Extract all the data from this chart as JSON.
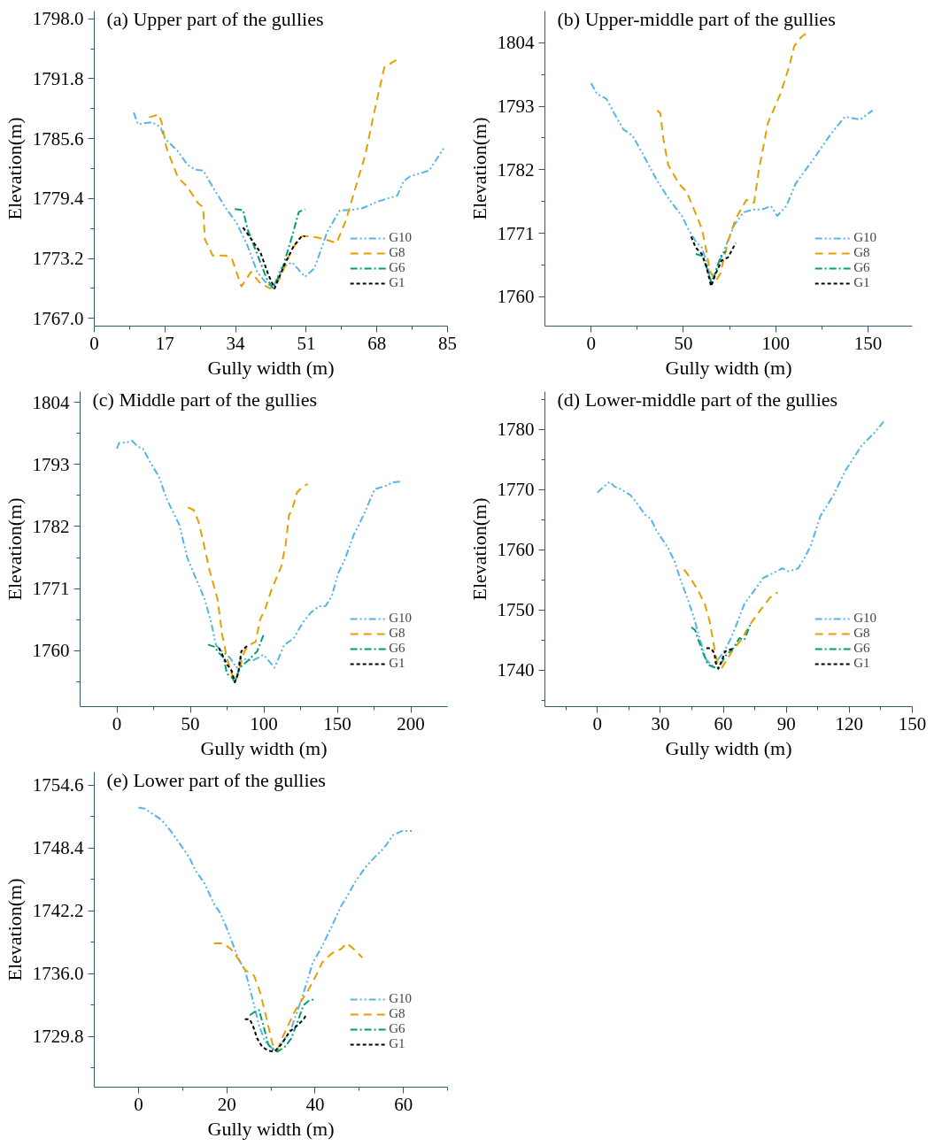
{
  "chart_data": [
    {
      "type": "line",
      "title": "(a) Upper part of the gullies",
      "xlabel": "Gully width (m)",
      "ylabel": "Elevation(m)",
      "legend": "bottom right",
      "xlim": [
        0,
        85
      ],
      "ylim": [
        1766.2,
        1798.8
      ],
      "xticks": [
        0,
        17,
        34,
        51,
        68,
        85,
        {
          "value": 8.5,
          "label": null
        },
        {
          "value": 25.5,
          "label": null
        },
        {
          "value": 42.5,
          "label": null
        },
        {
          "value": 59.5,
          "label": null
        },
        {
          "value": 76.5,
          "label": null
        }
      ],
      "yticks": [
        {
          "value": 1767,
          "label": "1767.0"
        },
        1773.2,
        1779.4,
        1785.6,
        1791.8,
        {
          "value": 1798,
          "label": "1798.0"
        },
        {
          "value": 1770.1,
          "label": null
        },
        {
          "value": 1776.3,
          "label": null
        },
        {
          "value": 1782.5,
          "label": null
        },
        {
          "value": 1788.7,
          "label": null
        },
        {
          "value": 1794.9,
          "label": null
        }
      ],
      "series": [
        {
          "name": "G10",
          "color": "#56b4e9",
          "line_style": "dashdotdot",
          "x": [
            9.5,
            10.5,
            13.9,
            15.9,
            17.0,
            20.1,
            22.4,
            24.3,
            26.2,
            28.5,
            31.5,
            34.2,
            36.9,
            39.2,
            41.1,
            43.0,
            44.9,
            47.6,
            50.7,
            53.0,
            56.0,
            59.1,
            61.4,
            64.5,
            68.3,
            72.9,
            74.4,
            76.0,
            80.6,
            84.4
          ],
          "values": [
            1788.3,
            1787.1,
            1787.3,
            1786.8,
            1785.6,
            1784.3,
            1782.9,
            1782.4,
            1782.3,
            1780.6,
            1778.5,
            1776.9,
            1774.5,
            1771.8,
            1770.8,
            1770.1,
            1772.2,
            1772.8,
            1771.3,
            1772.2,
            1775.9,
            1778.2,
            1778.2,
            1778.4,
            1779.1,
            1779.7,
            1781.2,
            1781.7,
            1782.3,
            1784.8
          ]
        },
        {
          "name": "G8",
          "color": "#e69f00",
          "line_style": "dashed",
          "x": [
            13.2,
            15.5,
            16.2,
            17.4,
            20.1,
            22.4,
            25.0,
            26.2,
            26.6,
            28.5,
            31.5,
            33.1,
            35.4,
            37.7,
            40.0,
            42.3,
            44.6,
            47.6,
            49.9,
            52.2,
            55.3,
            58.3,
            60.6,
            62.9,
            65.2,
            67.5,
            69.8,
            71.4,
            73.3
          ],
          "values": [
            1787.8,
            1788.1,
            1787.3,
            1784.6,
            1781.6,
            1780.6,
            1778.9,
            1778.5,
            1775.2,
            1773.5,
            1773.5,
            1773.2,
            1770.3,
            1771.8,
            1770.6,
            1770.1,
            1771.1,
            1774.2,
            1775.5,
            1775.5,
            1775.2,
            1774.8,
            1777.2,
            1780.6,
            1783.9,
            1788.6,
            1793.0,
            1793.4,
            1793.9
          ]
        },
        {
          "name": "G6",
          "color": "#009e73",
          "line_style": "dashdot",
          "x": [
            33.8,
            35.8,
            36.9,
            39.6,
            41.5,
            43.0,
            45.3,
            47.6,
            49.2,
            50.7
          ],
          "values": [
            1778.3,
            1778.2,
            1776.2,
            1773.2,
            1771.1,
            1770.1,
            1772.2,
            1775.5,
            1778.0,
            1778.3
          ]
        },
        {
          "name": "G1",
          "color": "#000000",
          "line_style": "dotted",
          "x": [
            35.8,
            37.3,
            40.0,
            41.9,
            43.4,
            45.7,
            48.0,
            49.9,
            50.7
          ],
          "values": [
            1776.4,
            1775.5,
            1773.8,
            1771.5,
            1770.1,
            1772.5,
            1774.5,
            1775.5,
            1775.5
          ]
        }
      ]
    },
    {
      "type": "line",
      "title": "(b) Upper-middle part of the gullies",
      "xlabel": "Gully width (m)",
      "ylabel": "Elevation(m)",
      "legend": "bottom right",
      "xlim": [
        -25,
        174
      ],
      "ylim": [
        1754.9,
        1809.5
      ],
      "xticks": [
        0,
        50,
        100,
        150,
        {
          "value": 25,
          "label": null
        },
        {
          "value": 75,
          "label": null
        },
        {
          "value": 125,
          "label": null
        }
      ],
      "yticks": [
        1760,
        1771,
        1782,
        1793,
        1804,
        {
          "value": 1765.5,
          "label": null
        },
        {
          "value": 1776.5,
          "label": null
        },
        {
          "value": 1787.5,
          "label": null
        },
        {
          "value": 1798.5,
          "label": null
        }
      ],
      "series": [
        {
          "name": "G10",
          "color": "#56b4e9",
          "line_style": "dashdotdot",
          "x": [
            0,
            3.3,
            8.3,
            12.5,
            17.5,
            22.5,
            29.2,
            35.8,
            42.5,
            49.2,
            52.5,
            56.7,
            60.0,
            63.3,
            65.0,
            69.2,
            73.3,
            77.5,
            82.5,
            87.5,
            92.5,
            97.5,
            100.8,
            105.8,
            110.8,
            115.8,
            120.8,
            129.2,
            137.5,
            145.8,
            152.5
          ],
          "values": [
            1797.0,
            1795.1,
            1794.3,
            1791.8,
            1789.0,
            1787.9,
            1784.0,
            1780.1,
            1776.8,
            1774.0,
            1771.8,
            1769.6,
            1768.5,
            1765.2,
            1762.4,
            1765.7,
            1769.0,
            1772.4,
            1774.6,
            1775.1,
            1775.1,
            1775.7,
            1774.0,
            1775.7,
            1779.6,
            1781.8,
            1784.0,
            1787.9,
            1791.2,
            1790.7,
            1792.3
          ]
        },
        {
          "name": "G8",
          "color": "#e69f00",
          "line_style": "dashed",
          "x": [
            35.8,
            37.5,
            39.2,
            41.7,
            47.5,
            51.7,
            55.8,
            60.0,
            62.5,
            64.2,
            67.5,
            70.0,
            74.2,
            78.3,
            84.2,
            86.7,
            88.3,
            90.8,
            95.8,
            102.5,
            107.5,
            110.0,
            114.2,
            117.5
          ],
          "values": [
            1792.3,
            1791.8,
            1787.3,
            1782.9,
            1779.6,
            1778.2,
            1775.1,
            1771.8,
            1767.9,
            1764.6,
            1762.7,
            1764.0,
            1769.6,
            1773.5,
            1776.8,
            1776.3,
            1776.3,
            1781.8,
            1790.1,
            1795.1,
            1800.1,
            1803.4,
            1805.1,
            1805.9
          ]
        },
        {
          "name": "G6",
          "color": "#009e73",
          "line_style": "dashdot",
          "x": [
            56.7,
            60.0,
            62.5,
            65.5,
            68.3,
            70.8,
            73.3
          ],
          "values": [
            1767.4,
            1767.1,
            1765.2,
            1762.1,
            1765.2,
            1767.4,
            1767.9
          ]
        },
        {
          "name": "G1",
          "color": "#000000",
          "line_style": "dotted",
          "x": [
            54.2,
            56.7,
            60.0,
            62.5,
            65.0,
            67.5,
            70.8,
            74.2,
            78.3
          ],
          "values": [
            1770.4,
            1768.5,
            1767.4,
            1765.2,
            1761.8,
            1764.0,
            1766.3,
            1766.8,
            1769.3
          ]
        }
      ]
    },
    {
      "type": "line",
      "title": "(c) Middle part of the gullies",
      "xlabel": "Gully width (m)",
      "ylabel": "Elevation(m)",
      "legend": "bottom right",
      "xlim": [
        -25,
        225
      ],
      "ylim": [
        1750.1,
        1805.9
      ],
      "xticks": [
        0,
        50,
        100,
        150,
        200,
        {
          "value": 25,
          "label": null
        },
        {
          "value": 75,
          "label": null
        },
        {
          "value": 125,
          "label": null
        },
        {
          "value": 175,
          "label": null
        }
      ],
      "yticks": [
        1760,
        1771,
        1782,
        1793,
        1804,
        {
          "value": 1754.5,
          "label": null
        },
        {
          "value": 1765.5,
          "label": null
        },
        {
          "value": 1776.5,
          "label": null
        },
        {
          "value": 1787.5,
          "label": null
        },
        {
          "value": 1798.5,
          "label": null
        }
      ],
      "series": [
        {
          "name": "G10",
          "color": "#56b4e9",
          "line_style": "dashdotdot",
          "x": [
            0,
            1.5,
            6.9,
            10.2,
            14.5,
            17.7,
            23.1,
            28.5,
            33.9,
            40.4,
            42.5,
            47.9,
            53.3,
            59.8,
            64.1,
            67.4,
            71.7,
            77.1,
            81.4,
            84.7,
            92.2,
            99.8,
            107.3,
            113.8,
            120.3,
            126.8,
            132.2,
            137.6,
            141.9,
            146.2,
            150.5,
            154.9,
            161.3,
            167.8,
            175.4,
            182.9,
            187.3,
            193.7
          ],
          "values": [
            1795.8,
            1796.8,
            1796.9,
            1797.2,
            1796.1,
            1795.8,
            1793.2,
            1790.9,
            1786.9,
            1783.4,
            1782.3,
            1776.5,
            1773.1,
            1769.1,
            1765.1,
            1761.0,
            1759.9,
            1758.7,
            1757.0,
            1758.7,
            1758.2,
            1759.3,
            1757.0,
            1761.0,
            1762.2,
            1765.1,
            1766.8,
            1767.9,
            1767.9,
            1769.6,
            1773.7,
            1776.0,
            1780.6,
            1784.0,
            1788.6,
            1789.2,
            1789.8,
            1790.0
          ]
        },
        {
          "name": "G8",
          "color": "#e69f00",
          "line_style": "dashed",
          "x": [
            48.4,
            52.3,
            55.5,
            58.7,
            63.1,
            68.5,
            71.7,
            74.9,
            78.2,
            80.3,
            83.6,
            86.8,
            90.1,
            94.4,
            97.6,
            100.9,
            105.2,
            111.7,
            114.9,
            117.1,
            119.2,
            122.5,
            126.8,
            130.0
          ],
          "values": [
            1785.4,
            1784.9,
            1782.9,
            1779.4,
            1774.2,
            1769.1,
            1762.8,
            1758.7,
            1755.9,
            1754.4,
            1757.0,
            1759.9,
            1761.0,
            1761.6,
            1765.6,
            1767.4,
            1770.8,
            1774.8,
            1778.8,
            1784.0,
            1784.9,
            1788.0,
            1789.2,
            1789.5
          ]
        },
        {
          "name": "G6",
          "color": "#009e73",
          "line_style": "dashdot",
          "x": [
            62.0,
            66.3,
            69.5,
            72.8,
            74.9,
            78.2,
            80.3,
            83.6,
            89.0,
            95.5,
            99.8,
            100.4
          ],
          "values": [
            1761.1,
            1760.7,
            1759.6,
            1758.7,
            1755.9,
            1755.3,
            1754.4,
            1757.0,
            1758.2,
            1759.9,
            1762.8,
            1763.2
          ]
        },
        {
          "name": "G1",
          "color": "#000000",
          "line_style": "dotted",
          "x": [
            69.5,
            71.7,
            74.9,
            78.2,
            80.3,
            82.5,
            84.7,
            87.9,
            89.6
          ],
          "values": [
            1760.5,
            1759.3,
            1757.6,
            1756.4,
            1754.4,
            1755.9,
            1759.9,
            1760.7,
            1760.9
          ]
        }
      ]
    },
    {
      "type": "line",
      "title": "(d) Lower-middle part of the gullies",
      "xlabel": "Gully width (m)",
      "ylabel": "Elevation(m)",
      "legend": "bottom right",
      "xlim": [
        -25,
        150
      ],
      "ylim": [
        1733.9,
        1786.3
      ],
      "xticks": [
        0,
        30,
        60,
        90,
        120,
        150,
        {
          "value": -15,
          "label": null
        },
        {
          "value": 15,
          "label": null
        },
        {
          "value": 45,
          "label": null
        },
        {
          "value": 75,
          "label": null
        },
        {
          "value": 105,
          "label": null
        },
        {
          "value": 135,
          "label": null
        }
      ],
      "yticks": [
        1740,
        1750,
        1760,
        1770,
        1780,
        {
          "value": 1735,
          "label": null
        },
        {
          "value": 1745,
          "label": null
        },
        {
          "value": 1755,
          "label": null
        },
        {
          "value": 1765,
          "label": null
        },
        {
          "value": 1775,
          "label": null
        },
        {
          "value": 1785,
          "label": null
        }
      ],
      "series": [
        {
          "name": "G10",
          "color": "#56b4e9",
          "line_style": "dashdotdot",
          "x": [
            0,
            2.1,
            5.9,
            8.1,
            10.4,
            15.7,
            18.7,
            22.5,
            25.5,
            27.8,
            30.8,
            33.8,
            36.8,
            39.8,
            42.8,
            45.9,
            48.9,
            51.9,
            54.9,
            58.7,
            60.9,
            63.9,
            67.0,
            70.0,
            74.5,
            79.0,
            83.6,
            88.1,
            91.1,
            95.6,
            98.6,
            101.7,
            106.2,
            112.2,
            118.2,
            125.8,
            131.8,
            136.3
          ],
          "values": [
            1769.5,
            1770.2,
            1771.3,
            1770.5,
            1770.2,
            1769.1,
            1767.8,
            1765.9,
            1765.1,
            1763.4,
            1761.8,
            1760.2,
            1758.0,
            1754.8,
            1752.0,
            1748.8,
            1745.0,
            1741.7,
            1740.7,
            1742.3,
            1743.4,
            1745.5,
            1748.2,
            1751.0,
            1753.1,
            1755.3,
            1756.1,
            1756.9,
            1756.4,
            1756.9,
            1758.6,
            1760.7,
            1765.6,
            1768.9,
            1773.2,
            1777.3,
            1779.4,
            1781.3
          ]
        },
        {
          "name": "G8",
          "color": "#e69f00",
          "line_style": "dashed",
          "x": [
            41.3,
            44.3,
            48.1,
            51.1,
            53.4,
            54.9,
            56.1,
            57.2,
            59.4,
            61.7,
            64.7,
            68.5,
            73.0,
            77.5,
            82.1,
            85.8
          ],
          "values": [
            1756.7,
            1755.3,
            1753.1,
            1751.0,
            1748.2,
            1745.3,
            1742.8,
            1741.2,
            1740.4,
            1741.7,
            1743.4,
            1745.0,
            1747.7,
            1749.9,
            1752.0,
            1752.9
          ]
        },
        {
          "name": "G6",
          "color": "#009e73",
          "line_style": "dashdot",
          "x": [
            44.8,
            46.6,
            48.1,
            50.4,
            52.6,
            55.7,
            57.9,
            60.9,
            64.7,
            67.7,
            70.0,
            73.0
          ],
          "values": [
            1747.1,
            1746.6,
            1745.0,
            1742.8,
            1740.9,
            1740.4,
            1740.4,
            1742.3,
            1743.6,
            1745.3,
            1745.0,
            1747.7
          ]
        },
        {
          "name": "G1",
          "color": "#000000",
          "line_style": "dotted",
          "x": [
            51.9,
            54.1,
            55.7,
            56.4,
            57.6,
            59.4,
            60.9,
            63.2,
            65.2
          ],
          "values": [
            1743.6,
            1743.6,
            1742.8,
            1741.2,
            1740.2,
            1741.7,
            1743.1,
            1743.4,
            1743.6
          ]
        }
      ]
    },
    {
      "type": "line",
      "title": "(e) Lower part of the gullies",
      "xlabel": "Gully width (m)",
      "ylabel": "Elevation(m)",
      "legend": "bottom right",
      "xlim": [
        -10,
        70
      ],
      "ylim": [
        1724.8,
        1755.9
      ],
      "xticks": [
        0,
        20,
        40,
        60,
        {
          "value": 10,
          "label": null
        },
        {
          "value": 30,
          "label": null
        },
        {
          "value": 50,
          "label": null
        },
        {
          "value": 70,
          "label": null
        }
      ],
      "yticks": [
        1729.8,
        {
          "value": 1736,
          "label": "1736.0"
        },
        1742.2,
        1748.4,
        1754.6,
        {
          "value": 1726.7,
          "label": null
        },
        {
          "value": 1732.9,
          "label": null
        },
        {
          "value": 1739.1,
          "label": null
        },
        {
          "value": 1745.3,
          "label": null
        },
        {
          "value": 1751.5,
          "label": null
        }
      ],
      "series": [
        {
          "name": "G10",
          "color": "#56b4e9",
          "line_style": "dashdotdot",
          "x": [
            0,
            1.4,
            3.1,
            5.2,
            7.3,
            9.4,
            11.5,
            12.9,
            15.0,
            17.1,
            18.5,
            19.9,
            21.3,
            22.7,
            24.1,
            26.2,
            27.3,
            28.7,
            30.4,
            31.5,
            33.2,
            34.6,
            36.7,
            38.1,
            39.5,
            41.6,
            43.7,
            45.8,
            47.2,
            49.3,
            51.4,
            53.5,
            55.6,
            57.7,
            59.8,
            61.9
          ],
          "values": [
            1752.4,
            1752.3,
            1751.8,
            1751.2,
            1750.1,
            1748.8,
            1747.5,
            1746.2,
            1744.9,
            1742.9,
            1742.0,
            1740.6,
            1739.0,
            1737.4,
            1736.4,
            1732.9,
            1730.9,
            1729.3,
            1728.6,
            1728.5,
            1729.6,
            1730.6,
            1733.2,
            1735.1,
            1737.1,
            1738.7,
            1740.6,
            1742.6,
            1743.6,
            1745.2,
            1746.5,
            1747.5,
            1748.4,
            1749.7,
            1750.1,
            1750.1
          ]
        },
        {
          "name": "G8",
          "color": "#e69f00",
          "line_style": "dashed",
          "x": [
            17.1,
            19.2,
            21.0,
            22.7,
            24.1,
            26.2,
            27.6,
            29.0,
            30.4,
            31.5,
            32.5,
            33.9,
            35.3,
            36.7,
            38.1,
            40.2,
            41.6,
            43.0,
            44.4,
            45.8,
            47.2,
            48.6,
            50.7
          ],
          "values": [
            1739.0,
            1739.0,
            1738.4,
            1737.4,
            1736.4,
            1735.8,
            1734.1,
            1731.6,
            1729.0,
            1728.5,
            1729.6,
            1730.9,
            1732.2,
            1733.2,
            1734.1,
            1735.8,
            1737.1,
            1737.7,
            1738.2,
            1738.4,
            1739.0,
            1738.5,
            1737.6
          ]
        },
        {
          "name": "G6",
          "color": "#009e73",
          "line_style": "dashdot",
          "x": [
            25.2,
            26.2,
            27.3,
            28.3,
            29.4,
            30.4,
            31.5,
            33.2,
            34.6,
            36.0,
            37.4,
            38.5,
            39.9
          ],
          "values": [
            1731.9,
            1732.2,
            1732.4,
            1730.9,
            1729.0,
            1728.5,
            1728.3,
            1728.8,
            1729.6,
            1731.2,
            1732.9,
            1733.3,
            1733.5
          ]
        },
        {
          "name": "G1",
          "color": "#000000",
          "line_style": "dotted",
          "x": [
            24.1,
            25.2,
            25.9,
            26.9,
            28.0,
            29.4,
            30.8,
            32.5,
            34.3,
            36.0,
            37.4,
            38.1
          ],
          "values": [
            1731.5,
            1731.5,
            1730.9,
            1729.6,
            1728.8,
            1728.4,
            1728.3,
            1729.1,
            1730.3,
            1730.9,
            1731.5,
            1732.0
          ]
        }
      ]
    }
  ]
}
